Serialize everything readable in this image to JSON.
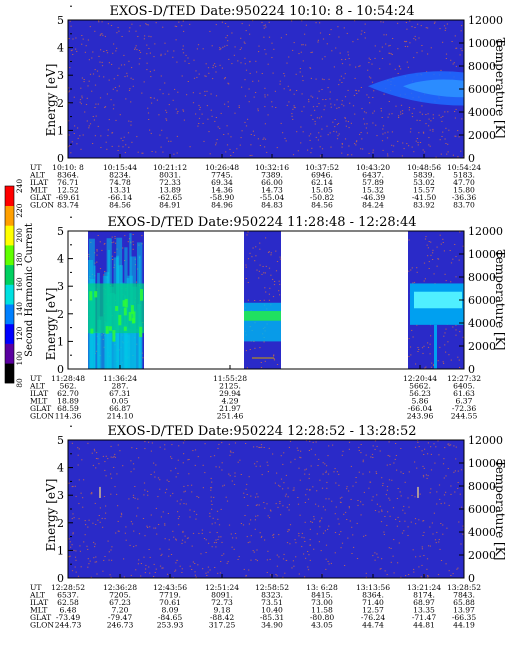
{
  "colors": {
    "background": "#2a2ac8",
    "band": "#1f6bff",
    "speck": "#b06060",
    "white": "#ffffff"
  },
  "colorbar": {
    "label": "Second Harmonic Current",
    "ticks": [
      "80",
      "100",
      "120",
      "140",
      "160",
      "180",
      "200",
      "220",
      "240"
    ],
    "colors": [
      "#000000",
      "#5a00a0",
      "#0000ff",
      "#0080ff",
      "#00e0e0",
      "#00d060",
      "#60ff00",
      "#ffff00",
      "#ffa000",
      "#ff0000"
    ]
  },
  "chart_data": [
    {
      "type": "heatmap",
      "title": "EXOS-D/TED   Date:950224   10:10: 8 - 10:54:24",
      "ylabel": "Energy [eV]",
      "y2label": "Temperature [K]",
      "ylim": [
        0,
        5
      ],
      "y2lim": [
        0,
        12000
      ],
      "yticks": [
        "0",
        "1",
        "2",
        "3",
        "4",
        "5"
      ],
      "y2ticks": [
        "0",
        "2000",
        "4000",
        "6000",
        "8000",
        "10000",
        "12000"
      ],
      "ephemeris": {
        "labels": [
          "UT",
          "ALT",
          "ILAT",
          "MLT",
          "GLAT",
          "GLON"
        ],
        "columns": [
          [
            "10:10: 8",
            "8364.",
            "76.71",
            "12.52",
            "-69.61",
            "83.74"
          ],
          [
            "10:15:44",
            "8234.",
            "74.78",
            "13.31",
            "-66.14",
            "84.56"
          ],
          [
            "10:21:12",
            "8031.",
            "72.33",
            "13.89",
            "-62.65",
            "84.91"
          ],
          [
            "10:26:48",
            "7745.",
            "69.34",
            "14.36",
            "-58.90",
            "84.96"
          ],
          [
            "10:32:16",
            "7389.",
            "66.00",
            "14.73",
            "-55.04",
            "84.83"
          ],
          [
            "10:37:52",
            "6946.",
            "62.14",
            "15.05",
            "-50.82",
            "84.56"
          ],
          [
            "10:43:20",
            "6437.",
            "57.89",
            "15.32",
            "-46.39",
            "84.24"
          ],
          [
            "10:48:56",
            "5839.",
            "53.02",
            "15.57",
            "-41.50",
            "83.92"
          ],
          [
            "10:54:24",
            "5183.",
            "47.70",
            "15.80",
            "-36.36",
            "83.70"
          ]
        ]
      }
    },
    {
      "type": "heatmap",
      "title": "EXOS-D/TED   Date:950224   11:28:48 - 12:28:44",
      "ylabel": "Energy [eV]",
      "y2label": "Temperature [K]",
      "ylim": [
        0,
        5
      ],
      "y2lim": [
        0,
        12000
      ],
      "yticks": [
        "0",
        "1",
        "2",
        "3",
        "4",
        "5"
      ],
      "y2ticks": [
        "0",
        "2000",
        "4000",
        "6000",
        "8000",
        "10000",
        "12000"
      ],
      "ephemeris": {
        "labels": [
          "UT",
          "ALT",
          "ILAT",
          "MLT",
          "GLAT",
          "GLON"
        ],
        "columns": [
          [
            "11:28:48",
            "562.",
            "62.70",
            "18.89",
            "68.59",
            "114.36"
          ],
          [
            "11:36:24",
            "287.",
            "67.31",
            "0.05",
            "66.87",
            "214.10"
          ],
          [
            "11:55:28",
            "2125.",
            "29.94",
            "4.29",
            "21.97",
            "251.46"
          ],
          [
            "12:20:44",
            "5662.",
            "56.23",
            "5.86",
            "-66.04",
            "243.96"
          ],
          [
            "12:27:32",
            "6405.",
            "61.63",
            "6.37",
            "-72.36",
            "244.55"
          ]
        ]
      }
    },
    {
      "type": "heatmap",
      "title": "EXOS-D/TED   Date:950224   12:28:52 - 13:28:52",
      "ylabel": "Energy [eV]",
      "y2label": "Temperature [K]",
      "ylim": [
        0,
        5
      ],
      "y2lim": [
        0,
        12000
      ],
      "yticks": [
        "0",
        "1",
        "2",
        "3",
        "4",
        "5"
      ],
      "y2ticks": [
        "0",
        "2000",
        "4000",
        "6000",
        "8000",
        "10000",
        "12000"
      ],
      "ephemeris": {
        "labels": [
          "UT",
          "ALT",
          "ILAT",
          "MLT",
          "GLAT",
          "GLON"
        ],
        "columns": [
          [
            "12:28:52",
            "6537.",
            "62.58",
            "6.48",
            "-73.49",
            "244.73"
          ],
          [
            "12:36:28",
            "7205.",
            "67.23",
            "7.20",
            "-79.47",
            "246.73"
          ],
          [
            "12:43:56",
            "7719.",
            "70.61",
            "8.09",
            "-84.65",
            "253.93"
          ],
          [
            "12:51:24",
            "8091.",
            "72.73",
            "9.18",
            "-88.42",
            "317.25"
          ],
          [
            "12:58:52",
            "8323.",
            "73.51",
            "10.40",
            "-85.31",
            "34.90"
          ],
          [
            "13: 6:28",
            "8415.",
            "73.00",
            "11.58",
            "-80.80",
            "43.05"
          ],
          [
            "13:13:56",
            "8364.",
            "71.40",
            "12.57",
            "-76.24",
            "44.74"
          ],
          [
            "13:21:24",
            "8174.",
            "68.97",
            "13.35",
            "-71.47",
            "44.81"
          ],
          [
            "13:28:52",
            "7843.",
            "65.88",
            "13.97",
            "-66.35",
            "44.19"
          ]
        ]
      }
    }
  ]
}
